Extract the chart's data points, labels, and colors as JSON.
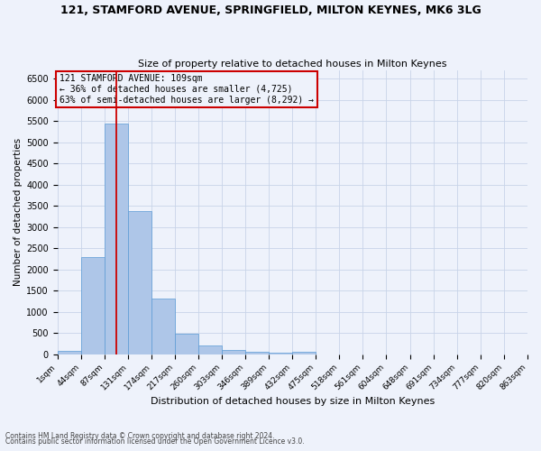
{
  "title1": "121, STAMFORD AVENUE, SPRINGFIELD, MILTON KEYNES, MK6 3LG",
  "title2": "Size of property relative to detached houses in Milton Keynes",
  "xlabel": "Distribution of detached houses by size in Milton Keynes",
  "ylabel": "Number of detached properties",
  "footer1": "Contains HM Land Registry data © Crown copyright and database right 2024.",
  "footer2": "Contains public sector information licensed under the Open Government Licence v3.0.",
  "annotation_line1": "121 STAMFORD AVENUE: 109sqm",
  "annotation_line2": "← 36% of detached houses are smaller (4,725)",
  "annotation_line3": "63% of semi-detached houses are larger (8,292) →",
  "property_size": 109,
  "bar_color": "#aec6e8",
  "bar_edge_color": "#5b9bd5",
  "vline_color": "#cc0000",
  "background_color": "#eef2fb",
  "bins_left": [
    1,
    44,
    87,
    131,
    174,
    217,
    260,
    303,
    346,
    389,
    432,
    475,
    518,
    561,
    604,
    648,
    691,
    734,
    777,
    820
  ],
  "bin_width": 43,
  "bar_heights": [
    75,
    2300,
    5430,
    3380,
    1310,
    475,
    195,
    90,
    55,
    40,
    55,
    0,
    0,
    0,
    0,
    0,
    0,
    0,
    0,
    0
  ],
  "tick_labels": [
    "1sqm",
    "44sqm",
    "87sqm",
    "131sqm",
    "174sqm",
    "217sqm",
    "260sqm",
    "303sqm",
    "346sqm",
    "389sqm",
    "432sqm",
    "475sqm",
    "518sqm",
    "561sqm",
    "604sqm",
    "648sqm",
    "691sqm",
    "734sqm",
    "777sqm",
    "820sqm",
    "863sqm"
  ],
  "ylim": [
    0,
    6700
  ],
  "yticks": [
    0,
    500,
    1000,
    1500,
    2000,
    2500,
    3000,
    3500,
    4000,
    4500,
    5000,
    5500,
    6000,
    6500
  ],
  "grid_color": "#c8d4e8",
  "annotation_box_edge": "#cc0000",
  "xmin": 1,
  "xmax": 863
}
